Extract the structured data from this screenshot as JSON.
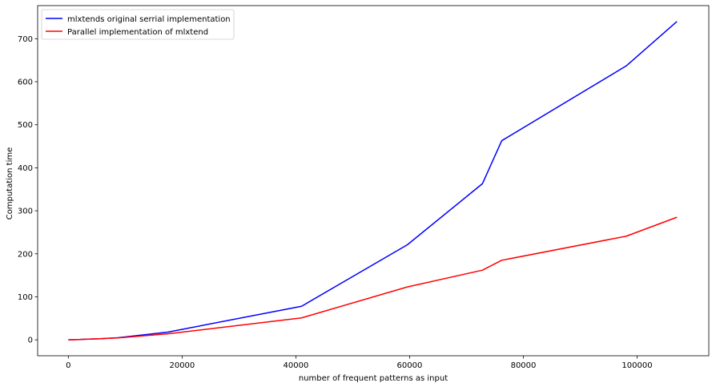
{
  "chart_data": {
    "type": "line",
    "title": "",
    "xlabel": "number of frequent patterns as input",
    "ylabel": "Computation time",
    "xlim": [
      -5400,
      112600
    ],
    "ylim": [
      -37,
      777
    ],
    "xticks": [
      0,
      20000,
      40000,
      60000,
      80000,
      100000
    ],
    "yticks": [
      0,
      100,
      200,
      300,
      400,
      500,
      600,
      700
    ],
    "grid": false,
    "legend_position": "top-left",
    "series": [
      {
        "name": "mlxtends original serrial implementation",
        "color": "#0000ff",
        "x": [
          0,
          1500,
          3000,
          5500,
          8700,
          17500,
          41000,
          59600,
          72800,
          76200,
          98100,
          107000
        ],
        "y": [
          0,
          0.5,
          1.5,
          2.5,
          5,
          18,
          78,
          221,
          363,
          463,
          637,
          740
        ]
      },
      {
        "name": "Parallel implementation of mlxtend",
        "color": "#ff0000",
        "x": [
          0,
          1500,
          3000,
          5500,
          8700,
          17500,
          41000,
          59600,
          72800,
          76200,
          98100,
          107000
        ],
        "y": [
          0,
          0.5,
          1.5,
          2.5,
          4.5,
          14,
          51,
          123,
          162,
          185,
          241,
          285
        ]
      }
    ]
  }
}
